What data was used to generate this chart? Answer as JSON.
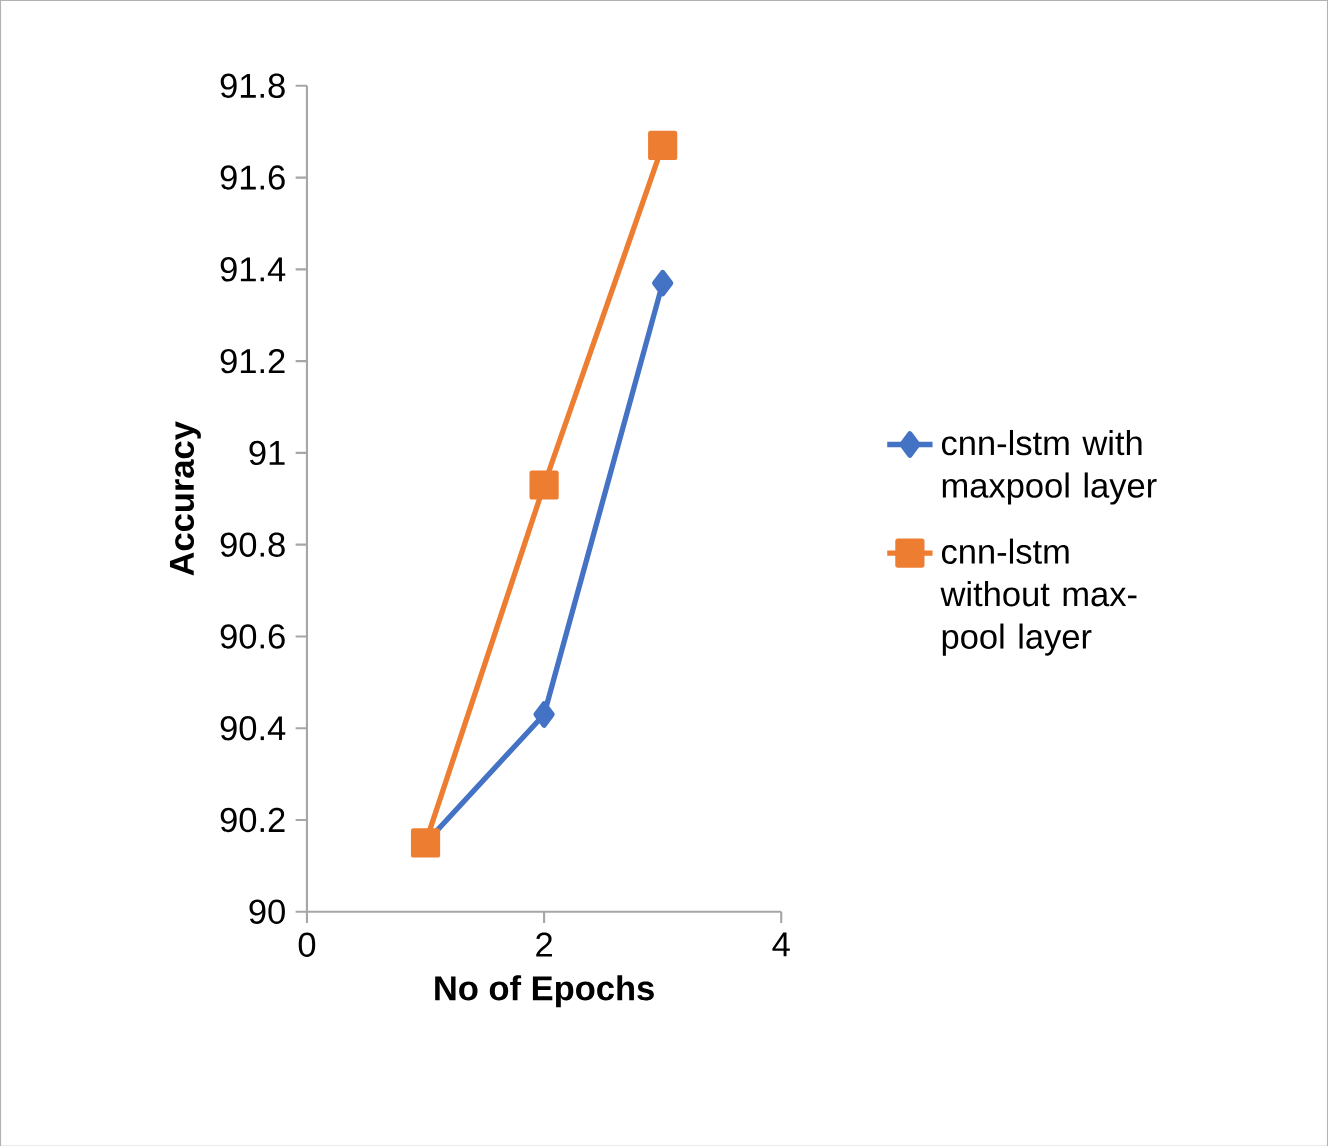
{
  "chart_data": {
    "type": "line",
    "xlabel": "No of Epochs",
    "ylabel": "Accuracy",
    "xlim": [
      0,
      4
    ],
    "xticks": [
      0,
      2,
      4
    ],
    "ylim": [
      90,
      91.8
    ],
    "yticks": [
      90,
      90.2,
      90.4,
      90.6,
      90.8,
      91,
      91.2,
      91.4,
      91.6,
      91.8
    ],
    "x": [
      1,
      2,
      3
    ],
    "legend": "right",
    "grid": false,
    "series": [
      {
        "name": "cnn-lstm with maxpool layer",
        "color": "#4472c4",
        "marker": "diamond",
        "values": [
          90.15,
          90.43,
          91.37
        ]
      },
      {
        "name": "cnn-lstm without max-pool layer",
        "color": "#ed7d31",
        "marker": "square",
        "values": [
          90.15,
          90.93,
          91.67
        ]
      }
    ]
  }
}
